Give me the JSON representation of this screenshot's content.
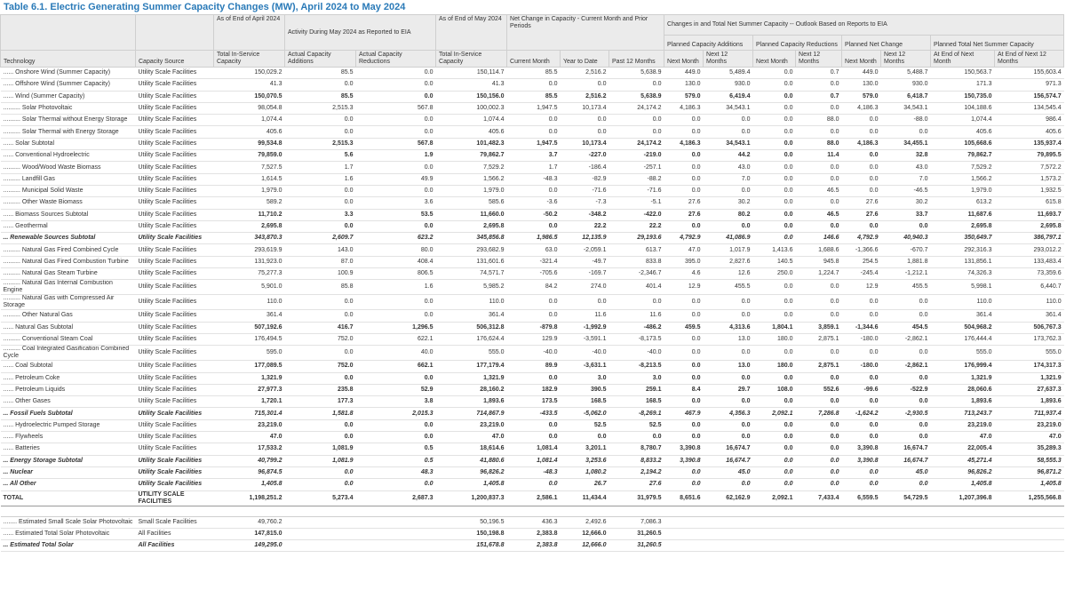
{
  "title": "Table 6.1. Electric Generating Summer Capacity Changes (MW), April 2024 to May 2024",
  "table": {
    "groups": [
      "As of End of April 2024",
      "Activity During May 2024 as Reported to EIA",
      "As of End of May 2024",
      "Net Change in Capacity - Current Month and Prior Periods",
      "Changes in and Total Net Summer Capacity -- Outlook Based on Reports to EIA"
    ],
    "subgroups": [
      "Planned Capacity Additions",
      "Planned Capacity Reductions",
      "Planned Net Change",
      "Planned Total Net Summer Capacity"
    ],
    "columns": [
      "Technology",
      "Capacity Source",
      "Total In-Service Capacity",
      "Actual Capacity Additions",
      "Actual Capacity Reductions",
      "Total In-Service Capacity",
      "Current Month",
      "Year to Date",
      "Past 12 Months",
      "Next Month",
      "Next 12 Months",
      "Next Month",
      "Next 12 Months",
      "Next Month",
      "Next 12 Months",
      "At End of Next Month",
      "At End of Next 12 Months"
    ],
    "rows": [
      [
        "...... Onshore Wind (Summer Capacity)",
        "Utility Scale Facilities",
        "150,029.2",
        "85.5",
        "0.0",
        "150,114.7",
        "85.5",
        "2,516.2",
        "5,638.9",
        "449.0",
        "5,489.4",
        "0.0",
        "0.7",
        "449.0",
        "5,488.7",
        "150,563.7",
        "155,603.4"
      ],
      [
        "...... Offshore Wind (Summer Capacity)",
        "Utility Scale Facilities",
        "41.3",
        "0.0",
        "0.0",
        "41.3",
        "0.0",
        "0.0",
        "0.0",
        "130.0",
        "930.0",
        "0.0",
        "0.0",
        "130.0",
        "930.0",
        "171.3",
        "971.3"
      ],
      [
        "...... Wind (Summer Capacity)",
        "Utility Scale Facilities",
        "150,070.5",
        "85.5",
        "0.0",
        "150,156.0",
        "85.5",
        "2,516.2",
        "5,638.9",
        "579.0",
        "6,419.4",
        "0.0",
        "0.7",
        "579.0",
        "6,418.7",
        "150,735.0",
        "156,574.7"
      ],
      [
        ".......... Solar Photovoltaic",
        "Utility Scale Facilities",
        "98,054.8",
        "2,515.3",
        "567.8",
        "100,002.3",
        "1,947.5",
        "10,173.4",
        "24,174.2",
        "4,186.3",
        "34,543.1",
        "0.0",
        "0.0",
        "4,186.3",
        "34,543.1",
        "104,188.6",
        "134,545.4"
      ],
      [
        ".......... Solar Thermal without Energy Storage",
        "Utility Scale Facilities",
        "1,074.4",
        "0.0",
        "0.0",
        "1,074.4",
        "0.0",
        "0.0",
        "0.0",
        "0.0",
        "0.0",
        "0.0",
        "88.0",
        "0.0",
        "-88.0",
        "1,074.4",
        "986.4"
      ],
      [
        ".......... Solar Thermal with Energy Storage",
        "Utility Scale Facilities",
        "405.6",
        "0.0",
        "0.0",
        "405.6",
        "0.0",
        "0.0",
        "0.0",
        "0.0",
        "0.0",
        "0.0",
        "0.0",
        "0.0",
        "0.0",
        "405.6",
        "405.6"
      ],
      [
        "...... Solar Subtotal",
        "Utility Scale Facilities",
        "99,534.8",
        "2,515.3",
        "567.8",
        "101,482.3",
        "1,947.5",
        "10,173.4",
        "24,174.2",
        "4,186.3",
        "34,543.1",
        "0.0",
        "88.0",
        "4,186.3",
        "34,455.1",
        "105,668.6",
        "135,937.4"
      ],
      [
        "...... Conventional Hydroelectric",
        "Utility Scale Facilities",
        "79,859.0",
        "5.6",
        "1.9",
        "79,862.7",
        "3.7",
        "-227.0",
        "-219.0",
        "0.0",
        "44.2",
        "0.0",
        "11.4",
        "0.0",
        "32.8",
        "79,862.7",
        "79,895.5"
      ],
      [
        ".......... Wood/Wood Waste Biomass",
        "Utility Scale Facilities",
        "7,527.5",
        "1.7",
        "0.0",
        "7,529.2",
        "1.7",
        "-186.4",
        "-257.1",
        "0.0",
        "43.0",
        "0.0",
        "0.0",
        "0.0",
        "43.0",
        "7,529.2",
        "7,572.2"
      ],
      [
        ".......... Landfill Gas",
        "Utility Scale Facilities",
        "1,614.5",
        "1.6",
        "49.9",
        "1,566.2",
        "-48.3",
        "-82.9",
        "-88.2",
        "0.0",
        "7.0",
        "0.0",
        "0.0",
        "0.0",
        "7.0",
        "1,566.2",
        "1,573.2"
      ],
      [
        ".......... Municipal Solid Waste",
        "Utility Scale Facilities",
        "1,979.0",
        "0.0",
        "0.0",
        "1,979.0",
        "0.0",
        "-71.6",
        "-71.6",
        "0.0",
        "0.0",
        "0.0",
        "46.5",
        "0.0",
        "-46.5",
        "1,979.0",
        "1,932.5"
      ],
      [
        ".......... Other Waste Biomass",
        "Utility Scale Facilities",
        "589.2",
        "0.0",
        "3.6",
        "585.6",
        "-3.6",
        "-7.3",
        "-5.1",
        "27.6",
        "30.2",
        "0.0",
        "0.0",
        "27.6",
        "30.2",
        "613.2",
        "615.8"
      ],
      [
        "...... Biomass Sources Subtotal",
        "Utility Scale Facilities",
        "11,710.2",
        "3.3",
        "53.5",
        "11,660.0",
        "-50.2",
        "-348.2",
        "-422.0",
        "27.6",
        "80.2",
        "0.0",
        "46.5",
        "27.6",
        "33.7",
        "11,687.6",
        "11,693.7"
      ],
      [
        "...... Geothermal",
        "Utility Scale Facilities",
        "2,695.8",
        "0.0",
        "0.0",
        "2,695.8",
        "0.0",
        "22.2",
        "22.2",
        "0.0",
        "0.0",
        "0.0",
        "0.0",
        "0.0",
        "0.0",
        "2,695.8",
        "2,695.8"
      ],
      [
        "... Renewable Sources Subtotal",
        "Utility Scale Facilities",
        "343,870.3",
        "2,609.7",
        "623.2",
        "345,856.8",
        "1,986.5",
        "12,135.9",
        "29,193.6",
        "4,792.9",
        "41,086.9",
        "0.0",
        "146.6",
        "4,792.9",
        "40,940.3",
        "350,649.7",
        "386,797.1"
      ],
      [
        ".......... Natural Gas Fired Combined Cycle",
        "Utility Scale Facilities",
        "293,619.9",
        "143.0",
        "80.0",
        "293,682.9",
        "63.0",
        "-2,059.1",
        "613.7",
        "47.0",
        "1,017.9",
        "1,413.6",
        "1,688.6",
        "-1,366.6",
        "-670.7",
        "292,316.3",
        "293,012.2"
      ],
      [
        ".......... Natural Gas Fired Combustion Turbine",
        "Utility Scale Facilities",
        "131,923.0",
        "87.0",
        "408.4",
        "131,601.6",
        "-321.4",
        "-49.7",
        "833.8",
        "395.0",
        "2,827.6",
        "140.5",
        "945.8",
        "254.5",
        "1,881.8",
        "131,856.1",
        "133,483.4"
      ],
      [
        ".......... Natural Gas Steam Turbine",
        "Utility Scale Facilities",
        "75,277.3",
        "100.9",
        "806.5",
        "74,571.7",
        "-705.6",
        "-169.7",
        "-2,346.7",
        "4.6",
        "12.6",
        "250.0",
        "1,224.7",
        "-245.4",
        "-1,212.1",
        "74,326.3",
        "73,359.6"
      ],
      [
        ".......... Natural Gas Internal Combustion Engine",
        "Utility Scale Facilities",
        "5,901.0",
        "85.8",
        "1.6",
        "5,985.2",
        "84.2",
        "274.0",
        "401.4",
        "12.9",
        "455.5",
        "0.0",
        "0.0",
        "12.9",
        "455.5",
        "5,998.1",
        "6,440.7"
      ],
      [
        ".......... Natural Gas with Compressed Air Storage",
        "Utility Scale Facilities",
        "110.0",
        "0.0",
        "0.0",
        "110.0",
        "0.0",
        "0.0",
        "0.0",
        "0.0",
        "0.0",
        "0.0",
        "0.0",
        "0.0",
        "0.0",
        "110.0",
        "110.0"
      ],
      [
        ".......... Other Natural Gas",
        "Utility Scale Facilities",
        "361.4",
        "0.0",
        "0.0",
        "361.4",
        "0.0",
        "11.6",
        "11.6",
        "0.0",
        "0.0",
        "0.0",
        "0.0",
        "0.0",
        "0.0",
        "361.4",
        "361.4"
      ],
      [
        "...... Natural Gas Subtotal",
        "Utility Scale Facilities",
        "507,192.6",
        "416.7",
        "1,296.5",
        "506,312.8",
        "-879.8",
        "-1,992.9",
        "-486.2",
        "459.5",
        "4,313.6",
        "1,804.1",
        "3,859.1",
        "-1,344.6",
        "454.5",
        "504,968.2",
        "506,767.3"
      ],
      [
        ".......... Conventional Steam Coal",
        "Utility Scale Facilities",
        "176,494.5",
        "752.0",
        "622.1",
        "176,624.4",
        "129.9",
        "-3,591.1",
        "-8,173.5",
        "0.0",
        "13.0",
        "180.0",
        "2,875.1",
        "-180.0",
        "-2,862.1",
        "176,444.4",
        "173,762.3"
      ],
      [
        ".......... Coal Integrated Gasification Combined Cycle",
        "Utility Scale Facilities",
        "595.0",
        "0.0",
        "40.0",
        "555.0",
        "-40.0",
        "-40.0",
        "-40.0",
        "0.0",
        "0.0",
        "0.0",
        "0.0",
        "0.0",
        "0.0",
        "555.0",
        "555.0"
      ],
      [
        "...... Coal Subtotal",
        "Utility Scale Facilities",
        "177,089.5",
        "752.0",
        "662.1",
        "177,179.4",
        "89.9",
        "-3,631.1",
        "-8,213.5",
        "0.0",
        "13.0",
        "180.0",
        "2,875.1",
        "-180.0",
        "-2,862.1",
        "176,999.4",
        "174,317.3"
      ],
      [
        "...... Petroleum Coke",
        "Utility Scale Facilities",
        "1,321.9",
        "0.0",
        "0.0",
        "1,321.9",
        "0.0",
        "3.0",
        "3.0",
        "0.0",
        "0.0",
        "0.0",
        "0.0",
        "0.0",
        "0.0",
        "1,321.9",
        "1,321.9"
      ],
      [
        "...... Petroleum Liquids",
        "Utility Scale Facilities",
        "27,977.3",
        "235.8",
        "52.9",
        "28,160.2",
        "182.9",
        "390.5",
        "259.1",
        "8.4",
        "29.7",
        "108.0",
        "552.6",
        "-99.6",
        "-522.9",
        "28,060.6",
        "27,637.3"
      ],
      [
        "...... Other Gases",
        "Utility Scale Facilities",
        "1,720.1",
        "177.3",
        "3.8",
        "1,893.6",
        "173.5",
        "168.5",
        "168.5",
        "0.0",
        "0.0",
        "0.0",
        "0.0",
        "0.0",
        "0.0",
        "1,893.6",
        "1,893.6"
      ],
      [
        "... Fossil Fuels Subtotal",
        "Utility Scale Facilities",
        "715,301.4",
        "1,581.8",
        "2,015.3",
        "714,867.9",
        "-433.5",
        "-5,062.0",
        "-8,269.1",
        "467.9",
        "4,356.3",
        "2,092.1",
        "7,286.8",
        "-1,624.2",
        "-2,930.5",
        "713,243.7",
        "711,937.4"
      ],
      [
        "...... Hydroelectric Pumped Storage",
        "Utility Scale Facilities",
        "23,219.0",
        "0.0",
        "0.0",
        "23,219.0",
        "0.0",
        "52.5",
        "52.5",
        "0.0",
        "0.0",
        "0.0",
        "0.0",
        "0.0",
        "0.0",
        "23,219.0",
        "23,219.0"
      ],
      [
        "...... Flywheels",
        "Utility Scale Facilities",
        "47.0",
        "0.0",
        "0.0",
        "47.0",
        "0.0",
        "0.0",
        "0.0",
        "0.0",
        "0.0",
        "0.0",
        "0.0",
        "0.0",
        "0.0",
        "47.0",
        "47.0"
      ],
      [
        "...... Batteries",
        "Utility Scale Facilities",
        "17,533.2",
        "1,081.9",
        "0.5",
        "18,614.6",
        "1,081.4",
        "3,201.1",
        "8,780.7",
        "3,390.8",
        "16,674.7",
        "0.0",
        "0.0",
        "3,390.8",
        "16,674.7",
        "22,005.4",
        "35,289.3"
      ],
      [
        "... Energy Storage Subtotal",
        "Utility Scale Facilities",
        "40,799.2",
        "1,081.9",
        "0.5",
        "41,880.6",
        "1,081.4",
        "3,253.6",
        "8,833.2",
        "3,390.8",
        "16,674.7",
        "0.0",
        "0.0",
        "3,390.8",
        "16,674.7",
        "45,271.4",
        "58,555.3"
      ],
      [
        "... Nuclear",
        "Utility Scale Facilities",
        "96,874.5",
        "0.0",
        "48.3",
        "96,826.2",
        "-48.3",
        "1,080.2",
        "2,194.2",
        "0.0",
        "45.0",
        "0.0",
        "0.0",
        "0.0",
        "45.0",
        "96,826.2",
        "96,871.2"
      ],
      [
        "... All Other",
        "Utility Scale Facilities",
        "1,405.8",
        "0.0",
        "0.0",
        "1,405.8",
        "0.0",
        "26.7",
        "27.6",
        "0.0",
        "0.0",
        "0.0",
        "0.0",
        "0.0",
        "0.0",
        "1,405.8",
        "1,405.8"
      ],
      [
        "TOTAL",
        "UTILITY SCALE FACILITIES",
        "1,198,251.2",
        "5,273.4",
        "2,687.3",
        "1,200,837.3",
        "2,586.1",
        "11,434.4",
        "31,979.5",
        "8,651.6",
        "62,162.9",
        "2,092.1",
        "7,433.4",
        "6,559.5",
        "54,729.5",
        "1,207,396.8",
        "1,255,566.8"
      ]
    ],
    "extra_rows": [
      [
        "........ Estimated Small Scale Solar Photovoltaic",
        "Small Scale Facilities",
        "49,760.2",
        null,
        null,
        "50,196.5",
        "436.3",
        "2,492.6",
        "7,086.3"
      ],
      [
        "...... Estimated Total Solar Photovoltaic",
        "All Facilities",
        "147,815.0",
        null,
        null,
        "150,198.8",
        "2,383.8",
        "12,666.0",
        "31,260.5"
      ],
      [
        "... Estimated Total Solar",
        "All Facilities",
        "149,295.0",
        null,
        null,
        "151,678.8",
        "2,383.8",
        "12,666.0",
        "31,260.5"
      ]
    ]
  }
}
